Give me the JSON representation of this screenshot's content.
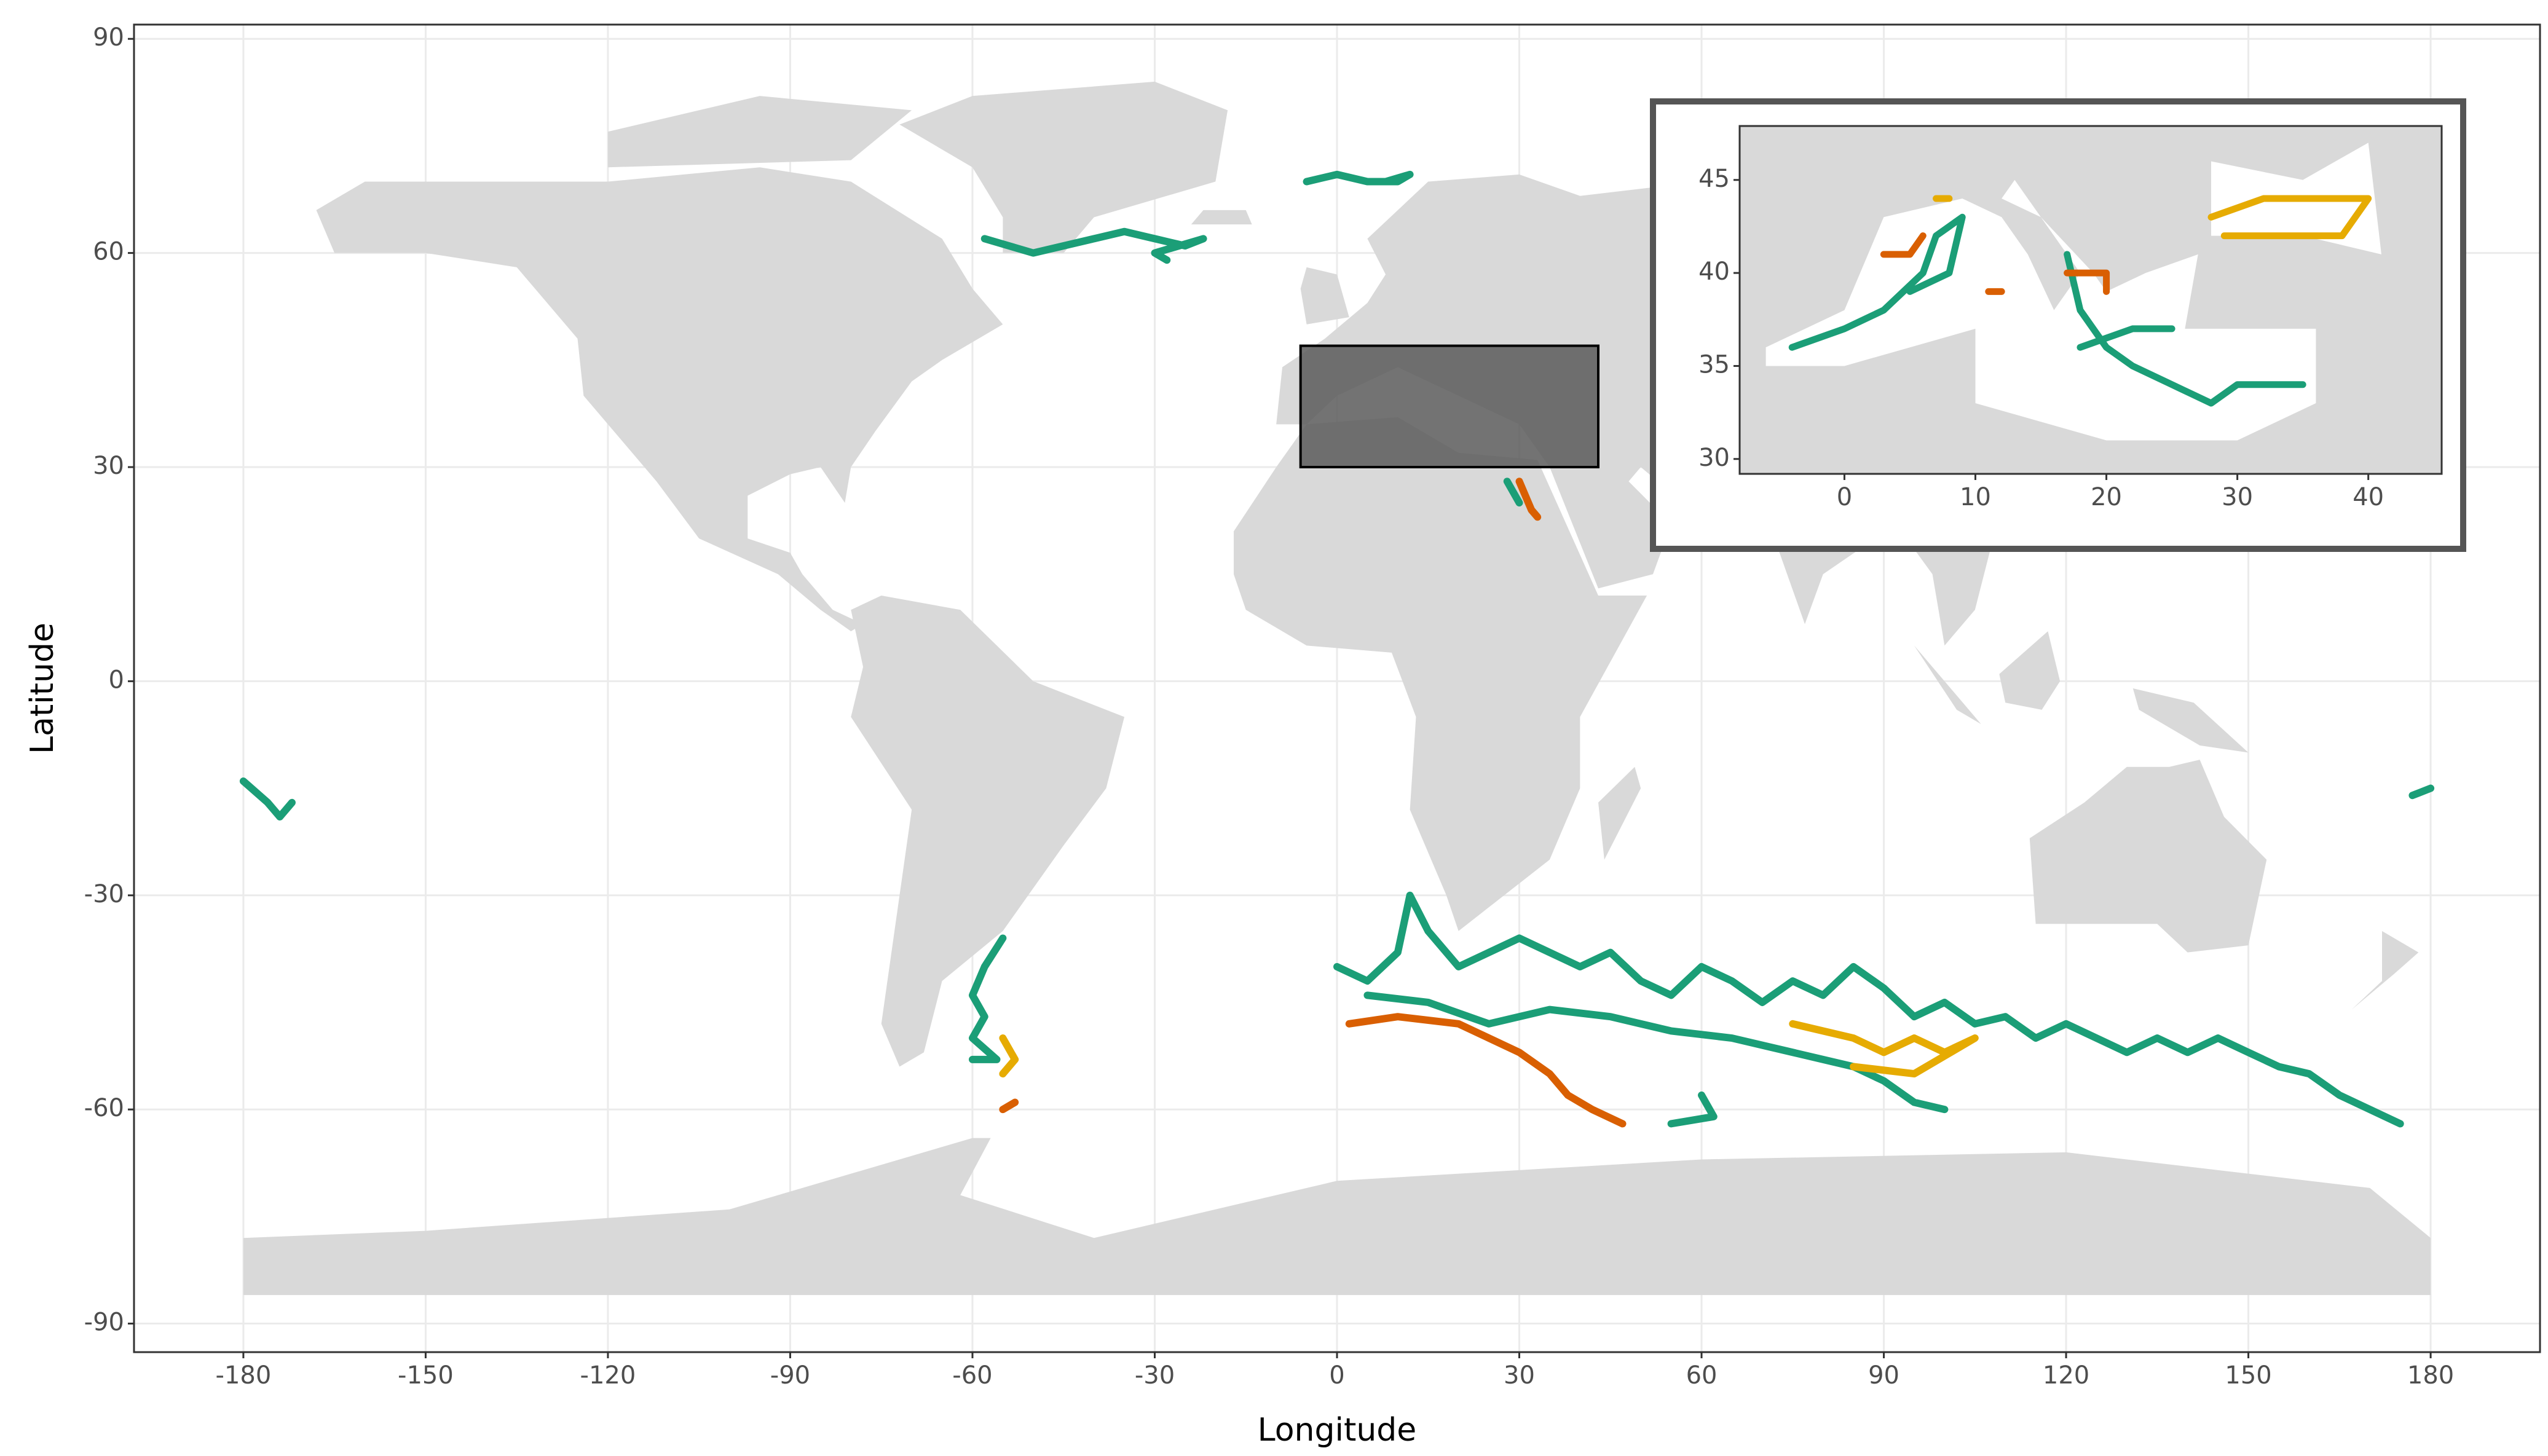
{
  "chart_data": {
    "type": "map",
    "x_label": "Longitude",
    "y_label": "Latitude",
    "xlim": [
      -198,
      198
    ],
    "ylim": [
      -94,
      92
    ],
    "xticks": [
      -180,
      -150,
      -120,
      -90,
      -60,
      -30,
      0,
      30,
      60,
      90,
      120,
      150,
      180
    ],
    "yticks": [
      -90,
      -60,
      -30,
      0,
      30,
      60,
      90
    ],
    "grid": true,
    "highlight_box": {
      "xlim": [
        -6,
        43
      ],
      "ylim": [
        30,
        47
      ],
      "color": "#5a5a5a"
    },
    "series": [
      {
        "color": "#1b9e77",
        "x": [
          -58,
          -50,
          -45,
          -40,
          -35,
          -30,
          -25,
          -22,
          -30,
          -28,
          null,
          -5,
          0,
          5,
          10,
          12,
          8,
          null,
          28,
          30,
          null,
          -180,
          -176,
          -174,
          -172,
          null,
          177,
          180,
          null,
          -55,
          -58,
          -60,
          -58,
          -60,
          -56,
          -60,
          null,
          0,
          5,
          10,
          12,
          15,
          20,
          25,
          30,
          35,
          40,
          45,
          50,
          55,
          60,
          65,
          70,
          75,
          80,
          85,
          90,
          95,
          100,
          105,
          110,
          115,
          120,
          125,
          130,
          135,
          140,
          145,
          150,
          155,
          160,
          165,
          170,
          175,
          null,
          5,
          15,
          25,
          35,
          45,
          55,
          65,
          75,
          85,
          90,
          95,
          100,
          null,
          60,
          62,
          55
        ],
        "y": [
          62,
          60,
          61,
          62,
          63,
          62,
          61,
          62,
          60,
          59,
          null,
          70,
          71,
          70,
          70,
          71,
          70,
          null,
          28,
          25,
          null,
          -14,
          -17,
          -19,
          -17,
          null,
          -16,
          -15,
          null,
          -36,
          -40,
          -44,
          -47,
          -50,
          -53,
          -53,
          null,
          -40,
          -42,
          -38,
          -30,
          -35,
          -40,
          -38,
          -36,
          -38,
          -40,
          -38,
          -42,
          -44,
          -40,
          -42,
          -45,
          -42,
          -44,
          -40,
          -43,
          -47,
          -45,
          -48,
          -47,
          -50,
          -48,
          -50,
          -52,
          -50,
          -52,
          -50,
          -52,
          -54,
          -55,
          -58,
          -60,
          -62,
          null,
          -44,
          -45,
          -48,
          -46,
          -47,
          -49,
          -50,
          -52,
          -54,
          -56,
          -59,
          -60,
          null,
          -58,
          -61,
          -62
        ]
      },
      {
        "color": "#d95f02",
        "x": [
          2,
          10,
          20,
          25,
          30,
          35,
          38,
          42,
          47,
          null,
          -53,
          -55,
          null,
          30,
          32,
          33
        ],
        "y": [
          -48,
          -47,
          -48,
          -50,
          -52,
          -55,
          -58,
          -60,
          -62,
          null,
          -59,
          -60,
          null,
          28,
          24,
          23
        ]
      },
      {
        "color": "#e6ab02",
        "x": [
          -55,
          -53,
          -55,
          null,
          75,
          85,
          90,
          95,
          100,
          105,
          95,
          85
        ],
        "y": [
          -50,
          -53,
          -55,
          null,
          -48,
          -50,
          -52,
          -50,
          -52,
          -50,
          -55,
          -54
        ]
      }
    ],
    "inset": {
      "xlim": [
        -8,
        45.6
      ],
      "ylim": [
        29.2,
        47.9
      ],
      "xticks": [
        0,
        10,
        20,
        30,
        40
      ],
      "yticks": [
        30,
        35,
        40,
        45
      ],
      "series": [
        {
          "color": "#1b9e77",
          "x": [
            -4,
            0,
            3,
            6,
            7,
            9,
            8,
            5,
            null,
            17,
            18,
            20,
            22,
            25,
            28,
            30,
            33,
            35,
            null,
            18,
            22,
            25
          ],
          "y": [
            36,
            37,
            38,
            40,
            42,
            43,
            40,
            39,
            null,
            41,
            38,
            36,
            35,
            34,
            33,
            34,
            34,
            34,
            null,
            36,
            37,
            37
          ]
        },
        {
          "color": "#d95f02",
          "x": [
            3,
            5,
            6,
            null,
            11,
            12,
            null,
            17,
            20,
            20
          ],
          "y": [
            41,
            41,
            42,
            null,
            39,
            39,
            null,
            40,
            40,
            39
          ]
        },
        {
          "color": "#e6ab02",
          "x": [
            28,
            32,
            36,
            40,
            38,
            33,
            29,
            null,
            7,
            8
          ],
          "y": [
            43,
            44,
            44,
            44,
            42,
            42,
            42,
            null,
            44,
            44
          ]
        }
      ]
    }
  }
}
